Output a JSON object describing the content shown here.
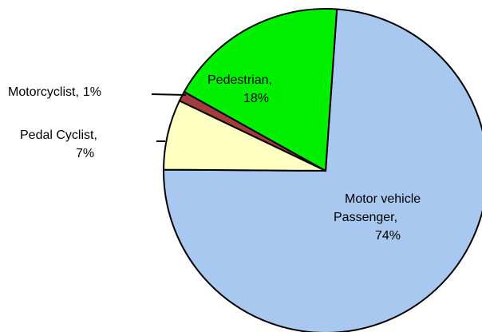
{
  "chart_data": {
    "type": "pie",
    "categories": [
      "Motor vehicle Passenger,",
      "Pedal Cyclist,",
      "Motorcyclist,",
      "Pedestrian,"
    ],
    "values": [
      74,
      7,
      1,
      18
    ],
    "value_labels": [
      "74%",
      "7%",
      "1%",
      "18%"
    ],
    "colors": [
      "#a8c8ef",
      "#ffffc2",
      "#a33c3c",
      "#00f000"
    ]
  }
}
